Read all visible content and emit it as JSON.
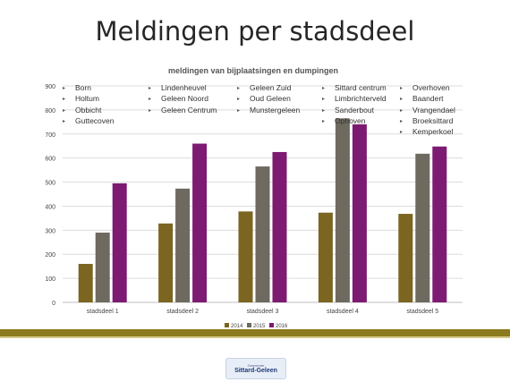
{
  "slide": {
    "title": "Meldingen per stadsdeel"
  },
  "chart_data": {
    "type": "bar",
    "title": "meldingen van bijplaatsingen en dumpingen",
    "categories": [
      "stadsdeel 1",
      "stadsdeel 2",
      "stadsdeel 3",
      "stadsdeel 4",
      "stadsdeel 5"
    ],
    "series": [
      {
        "name": "2014",
        "color": "#7b6520",
        "values": [
          160,
          328,
          378,
          373,
          368
        ]
      },
      {
        "name": "2015",
        "color": "#6f6a5f",
        "values": [
          290,
          473,
          565,
          765,
          618
        ]
      },
      {
        "name": "2016",
        "color": "#7d1a72",
        "values": [
          495,
          660,
          625,
          740,
          648
        ]
      }
    ],
    "ylim": [
      0,
      900
    ],
    "yticks": [
      0,
      100,
      200,
      300,
      400,
      500,
      600,
      700,
      800,
      900
    ],
    "grid": true,
    "legend": "bottom"
  },
  "districts": [
    [
      "Born",
      "Holtum",
      "Obbicht",
      "Guttecoven"
    ],
    [
      "Lindenheuvel",
      "Geleen Noord",
      "Geleen Centrum"
    ],
    [
      "Geleen Zuid",
      "Oud Geleen",
      "Munstergeleen"
    ],
    [
      "Sittard centrum",
      "Limbrichterveld",
      "Sanderbout",
      "Ophoven"
    ],
    [
      "Overhoven",
      "Baandert",
      "Vrangendael",
      "Broeksittard",
      "Kemperkoel"
    ]
  ],
  "logo": {
    "top_text": "Gemeente",
    "name": "Sittard-Geleen"
  }
}
